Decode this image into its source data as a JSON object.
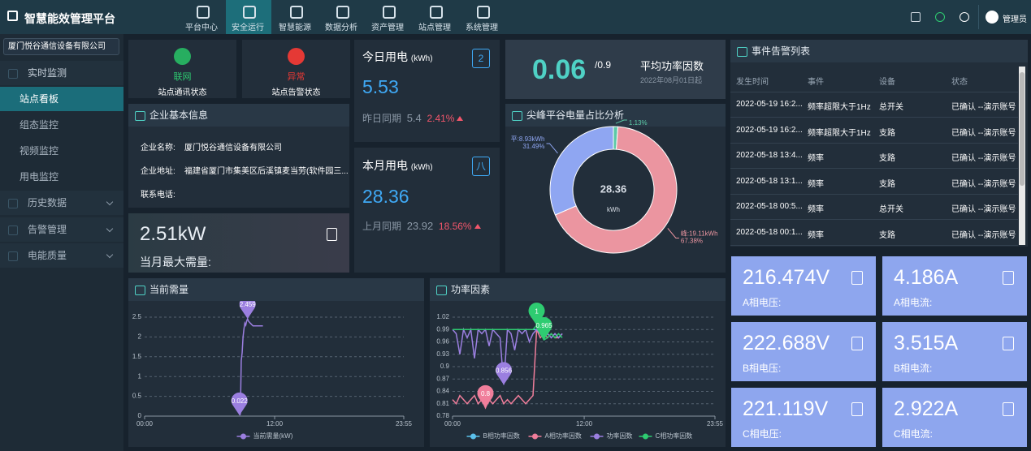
{
  "header": {
    "title": "智慧能效管理平台",
    "nav": [
      "平台中心",
      "安全运行",
      "智慧能源",
      "数据分析",
      "资产管理",
      "站点管理",
      "系统管理"
    ],
    "user": "管理员"
  },
  "sidebar": {
    "company": "厦门悦谷通信设备有限公司",
    "menu": [
      {
        "label": "实时监测",
        "children": [
          "站点看板",
          "组态监控",
          "视频监控",
          "用电监控"
        ]
      },
      {
        "label": "历史数据"
      },
      {
        "label": "告警管理"
      },
      {
        "label": "电能质量"
      }
    ]
  },
  "status": [
    {
      "state": "联网",
      "label": "站点通讯状态"
    },
    {
      "state": "异常",
      "label": "站点告警状态"
    }
  ],
  "company_info": {
    "title": "企业基本信息",
    "rows": [
      {
        "key": "企业名称:",
        "value": "厦门悦谷通信设备有限公司"
      },
      {
        "key": "企业地址:",
        "value": "福建省厦门市集美区后溪镇麦当劳(软件园三..."
      },
      {
        "key": "联系电话:"
      }
    ]
  },
  "max_demand": {
    "value": "2.51kW",
    "label": "当月最大需量:"
  },
  "today": {
    "title": "今日用电",
    "unit": "(kWh)",
    "icon": "2",
    "value": "5.53",
    "compare_label": "昨日同期",
    "compare": "5.4",
    "change": "2.41%"
  },
  "month": {
    "title": "本月用电",
    "unit": "(kWh)",
    "icon": "八",
    "value": "28.36",
    "compare_label": "上月同期",
    "compare": "23.92",
    "change": "18.56%"
  },
  "power_factor": {
    "value": "0.06",
    "target": "/0.9",
    "label": "平均功率因数",
    "since": "2022年08月01日起"
  },
  "events": {
    "title": "事件告警列表",
    "columns": [
      "发生时间",
      "事件",
      "设备",
      "状态"
    ],
    "rows": [
      [
        "2022-05-19 16:2...",
        "频率超限大于1Hz",
        "总开关",
        "已确认 --演示账号"
      ],
      [
        "2022-05-19 16:2...",
        "频率超限大于1Hz",
        "支路",
        "已确认 --演示账号"
      ],
      [
        "2022-05-18 13:4...",
        "频率",
        "支路",
        "已确认 --演示账号"
      ],
      [
        "2022-05-18 13:1...",
        "频率",
        "支路",
        "已确认 --演示账号"
      ],
      [
        "2022-05-18 00:5...",
        "频率",
        "总开关",
        "已确认 --演示账号"
      ],
      [
        "2022-05-18 00:1...",
        "频率",
        "支路",
        "已确认 --演示账号"
      ]
    ]
  },
  "measurements": [
    {
      "value": "216.474V",
      "label": "A相电压:"
    },
    {
      "value": "4.186A",
      "label": "A相电流:"
    },
    {
      "value": "222.688V",
      "label": "B相电压:"
    },
    {
      "value": "3.515A",
      "label": "B相电流:"
    },
    {
      "value": "221.119V",
      "label": "C相电压:"
    },
    {
      "value": "2.922A",
      "label": "C相电流:"
    }
  ],
  "chart_data": [
    {
      "type": "pie",
      "title": "尖峰平谷电量占比分析",
      "center_value": "28.36",
      "center_unit": "kWh",
      "values": [
        1.13,
        67.38,
        31.49
      ],
      "value_labels": [
        "1.13%",
        "67.38%",
        "31.49%"
      ],
      "energy_labels": [
        null,
        "峰:19.11kWh",
        "平:8.93kWh"
      ],
      "colors": [
        "#5cc9a7",
        "#eb95a0",
        "#8fa6f2"
      ]
    },
    {
      "type": "line",
      "title": "当前需量",
      "xlim": [
        "00:00",
        "23:55"
      ],
      "xticks": [
        "00:00",
        "12:00",
        "23:55"
      ],
      "ylim": [
        0,
        2.5
      ],
      "yticks": [
        0,
        0.5,
        1,
        1.5,
        2,
        2.5
      ],
      "grid": true,
      "x": [
        "08:45",
        "08:50",
        "08:55",
        "09:00",
        "09:05",
        "09:10",
        "09:15",
        "09:20",
        "09:25",
        "09:30",
        "09:35",
        "09:45",
        "10:00",
        "10:15",
        "10:30",
        "10:55"
      ],
      "series": [
        {
          "name": "当前需量(kW)",
          "color": "#9b7fe0",
          "markers": [
            "max",
            "min"
          ],
          "values": [
            0.022,
            0.05,
            1.4,
            1.6,
            2.0,
            2.2,
            2.35,
            2.3,
            2.4,
            2.459,
            2.4,
            2.35,
            2.28,
            2.28,
            2.28,
            2.28
          ]
        }
      ]
    },
    {
      "type": "line",
      "title": "功率因素",
      "xlim": [
        "00:00",
        "23:55"
      ],
      "xticks": [
        "00:00",
        "12:00",
        "23:55"
      ],
      "ylim": [
        0.78,
        1.02
      ],
      "yticks": [
        0.78,
        0.81,
        0.84,
        0.87,
        0.9,
        0.93,
        0.96,
        0.99,
        1.02
      ],
      "grid": true,
      "x": [
        "00:00",
        "00:20",
        "00:40",
        "01:00",
        "01:20",
        "01:40",
        "02:00",
        "02:20",
        "02:40",
        "03:00",
        "03:20",
        "03:40",
        "04:00",
        "04:20",
        "04:40",
        "05:00",
        "05:20",
        "05:40",
        "06:00",
        "06:20",
        "06:40",
        "07:00",
        "07:20",
        "07:40",
        "08:00",
        "08:20",
        "08:40",
        "09:00",
        "09:20",
        "09:40",
        "10:00"
      ],
      "series": [
        {
          "name": "B相功率因数",
          "color": "#5bc0eb",
          "markers": [],
          "values": [
            0.99,
            0.99,
            0.99,
            0.99,
            0.99,
            0.99,
            0.99,
            0.99,
            0.99,
            0.99,
            0.99,
            0.99,
            0.99,
            0.99,
            0.99,
            0.99,
            0.99,
            0.99,
            0.99,
            0.99,
            0.99,
            0.99,
            0.99,
            0.99,
            0.98,
            0.97,
            0.98,
            0.97,
            0.98,
            0.97,
            0.98
          ]
        },
        {
          "name": "A相功率因数",
          "color": "#f07e9b",
          "markers": [
            "min"
          ],
          "values": [
            0.82,
            0.81,
            0.83,
            0.82,
            0.81,
            0.82,
            0.83,
            0.81,
            0.82,
            0.8,
            0.82,
            0.81,
            0.82,
            0.83,
            0.81,
            0.82,
            0.81,
            0.82,
            0.83,
            0.82,
            0.81,
            0.82,
            0.83,
            0.99,
            0.97,
            0.98,
            0.97,
            0.98,
            0.97,
            0.97,
            0.98
          ]
        },
        {
          "name": "功率因数",
          "color": "#9b7fe0",
          "markers": [
            "min"
          ],
          "values": [
            0.99,
            0.98,
            0.93,
            0.99,
            0.97,
            0.99,
            0.92,
            0.99,
            0.98,
            0.99,
            0.95,
            0.99,
            0.98,
            0.97,
            0.856,
            0.99,
            0.98,
            0.94,
            0.99,
            0.98,
            0.99,
            0.96,
            0.98,
            0.99,
            0.98,
            0.97,
            0.98,
            0.97,
            0.98,
            0.97,
            0.98
          ]
        },
        {
          "name": "C相功率因数",
          "color": "#2ecc71",
          "markers": [
            "max",
            "min"
          ],
          "values": [
            0.99,
            0.99,
            0.99,
            0.99,
            0.99,
            0.99,
            0.99,
            0.99,
            0.99,
            0.99,
            0.99,
            0.99,
            0.99,
            0.99,
            0.99,
            0.99,
            0.99,
            0.99,
            0.99,
            0.99,
            0.99,
            0.99,
            0.99,
            1,
            0.98,
            0.965,
            0.97,
            0.98,
            0.97,
            0.98,
            0.97
          ]
        }
      ]
    }
  ]
}
